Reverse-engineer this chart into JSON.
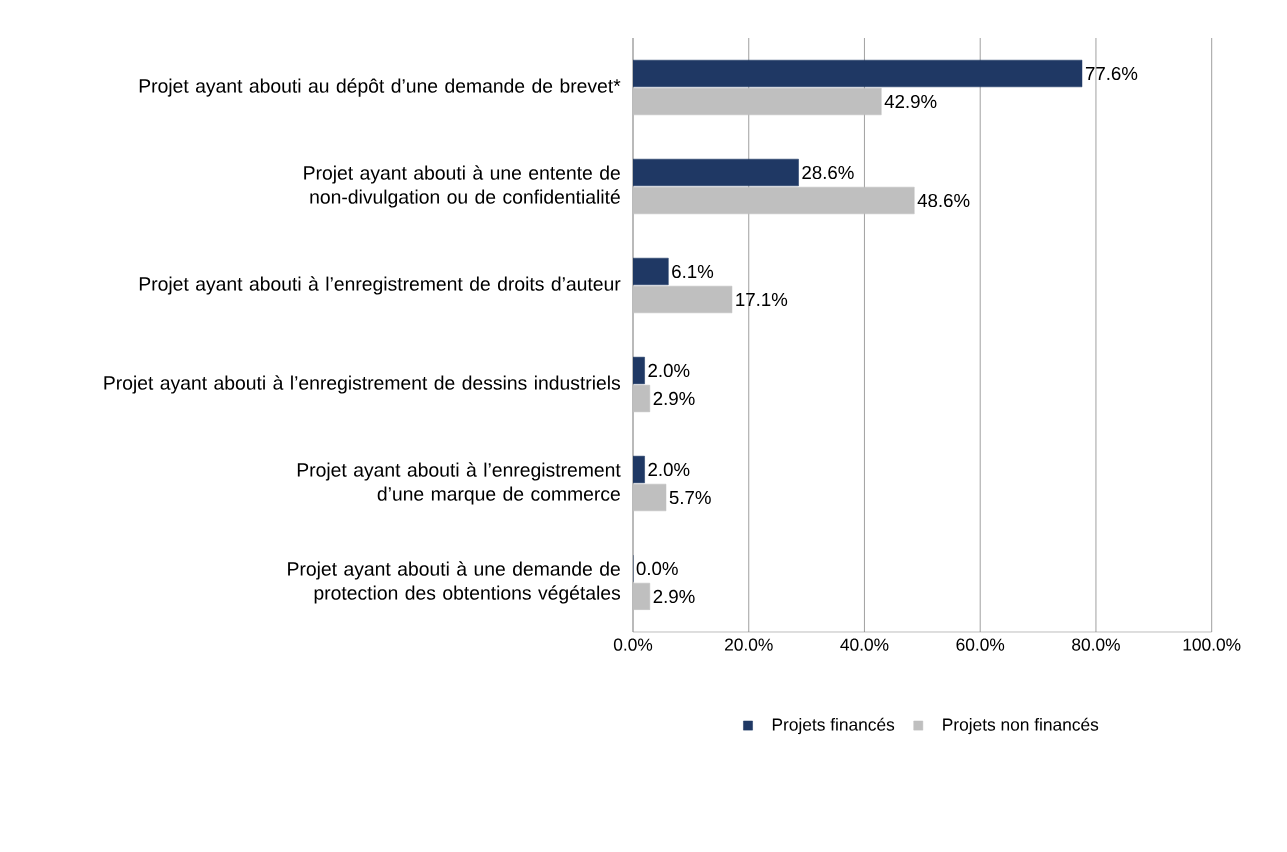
{
  "chart_data": {
    "type": "bar",
    "orientation": "horizontal",
    "categories": [
      "Projet ayant abouti au dépôt d’une demande de brevet*",
      "Projet ayant abouti à une entente de non-divulgation ou de confidentialité",
      "Projet ayant abouti à l’enregistrement de droits d’auteur",
      "Projet ayant abouti à l’enregistrement de dessins industriels",
      "Projet ayant abouti à l’enregistrement d’une marque de commerce",
      "Projet ayant abouti à une demande de protection des obtentions végétales"
    ],
    "series": [
      {
        "name": "Projets financés",
        "color": "#1f3864",
        "values": [
          77.6,
          28.6,
          6.1,
          2.0,
          2.0,
          0.0
        ],
        "value_labels": [
          "77.6%",
          "28.6%",
          "6.1%",
          "2.0%",
          "2.0%",
          "0.0%"
        ]
      },
      {
        "name": "Projets non financés",
        "color": "#bfbfbf",
        "values": [
          42.9,
          48.6,
          17.1,
          2.9,
          5.7,
          2.9
        ],
        "value_labels": [
          "42.9%",
          "48.6%",
          "17.1%",
          "2.9%",
          "5.7%",
          "2.9%"
        ]
      }
    ],
    "xlim": [
      0,
      100
    ],
    "xticks": [
      {
        "value": 0,
        "label": "0.0%"
      },
      {
        "value": 20,
        "label": "20.0%"
      },
      {
        "value": 40,
        "label": "40.0%"
      },
      {
        "value": 60,
        "label": "60.0%"
      },
      {
        "value": 80,
        "label": "80.0%"
      },
      {
        "value": 100,
        "label": "100.0%"
      }
    ],
    "grid": "x",
    "legend": "bottom"
  }
}
